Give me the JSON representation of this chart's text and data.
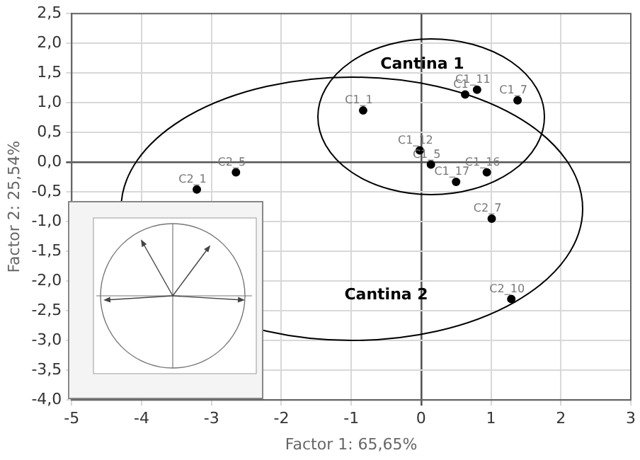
{
  "chart_data": {
    "type": "scatter",
    "xlabel": "Factor 1: 65,65%",
    "ylabel": "Factor 2: 25,54%",
    "xlim": [
      -5,
      3
    ],
    "xticks": [
      -5,
      -4,
      -3,
      -2,
      -1,
      0,
      1,
      2,
      3
    ],
    "ylim": [
      -4,
      2.5
    ],
    "yticks": [
      {
        "value": -4,
        "label": "-4,0"
      },
      {
        "value": -3.5,
        "label": "-3,5"
      },
      {
        "value": -3,
        "label": "-3,0"
      },
      {
        "value": -2.5,
        "label": "-2,5"
      },
      {
        "value": -2,
        "label": "-2,0"
      },
      {
        "value": -1.5,
        "label": "-1,5"
      },
      {
        "value": -1,
        "label": "-1,0"
      },
      {
        "value": -0.5,
        "label": "-0,5"
      },
      {
        "value": 0,
        "label": "0,0"
      },
      {
        "value": 0.5,
        "label": "0,5"
      },
      {
        "value": 1,
        "label": "1,0"
      },
      {
        "value": 1.5,
        "label": "1,5"
      },
      {
        "value": 2,
        "label": "2,0"
      },
      {
        "value": 2.5,
        "label": "2,5"
      }
    ],
    "grid": true,
    "legend": false,
    "marker": "circle",
    "series": [
      {
        "color": "#000000",
        "x": [
          -0.83,
          0.63,
          0.8,
          1.38,
          -0.02,
          0.14,
          0.94,
          0.5,
          1.01,
          -2.65,
          -3.21,
          1.29
        ],
        "values": [
          0.87,
          1.14,
          1.22,
          1.04,
          0.2,
          -0.04,
          -0.17,
          -0.33,
          -0.95,
          -0.17,
          -0.46,
          -2.3
        ],
        "value_labels": [
          "C1_1",
          "C1",
          "C1_11",
          "C1_7",
          "C1_12",
          "C1_5",
          "C1_16",
          "C1_17",
          "C2_7",
          "C2_5",
          "C2_1",
          "C2_10"
        ]
      }
    ],
    "annotations": [
      "Cantina 1",
      "Cantina 2"
    ]
  }
}
